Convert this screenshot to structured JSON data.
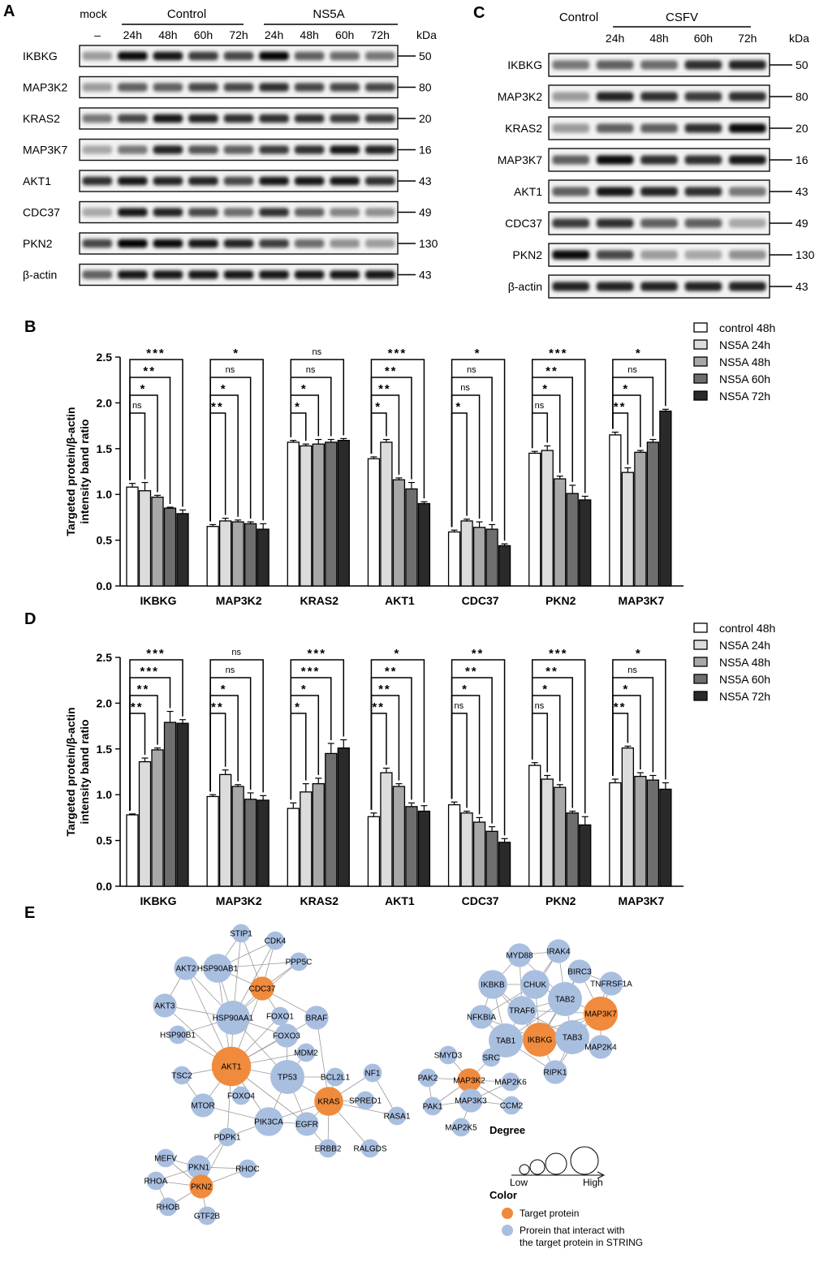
{
  "panel_labels": {
    "a": "A",
    "b": "B",
    "c": "C",
    "d": "D",
    "e": "E"
  },
  "blot_a": {
    "mock_label": "mock",
    "mock_dash": "–",
    "group_control": "Control",
    "group_ns5a": "NS5A",
    "times": [
      "24h",
      "48h",
      "60h",
      "72h"
    ],
    "kda_label": "kDa",
    "proteins": [
      "IKBKG",
      "MAP3K2",
      "KRAS2",
      "MAP3K7",
      "AKT1",
      "CDC37",
      "PKN2",
      "β-actin"
    ],
    "kda": [
      "50",
      "80",
      "20",
      "16",
      "43",
      "49",
      "130",
      "43"
    ],
    "lanes": 9
  },
  "blot_c": {
    "group_control": "Control",
    "group_csfv": "CSFV",
    "times": [
      "24h",
      "48h",
      "60h",
      "72h"
    ],
    "kda_label": "kDa",
    "proteins": [
      "IKBKG",
      "MAP3K2",
      "KRAS2",
      "MAP3K7",
      "AKT1",
      "CDC37",
      "PKN2",
      "β-actin"
    ],
    "kda": [
      "50",
      "80",
      "20",
      "16",
      "43",
      "49",
      "130",
      "43"
    ],
    "lanes": 5
  },
  "chart_data": [
    {
      "type": "bar",
      "panel": "B",
      "ylabel": "Targeted protein/β-actin intensity band ratio",
      "ylabel_lines": [
        "Targeted protein/β-actin",
        "intensity band ratio"
      ],
      "ylim": [
        0,
        2.5
      ],
      "yticks": [
        "0.0",
        "0.5",
        "1.0",
        "1.5",
        "2.0",
        "2.5"
      ],
      "categories": [
        "IKBKG",
        "MAP3K2",
        "KRAS2",
        "AKT1",
        "CDC37",
        "PKN2",
        "MAP3K7"
      ],
      "series": [
        {
          "name": "control 48h",
          "color": "#ffffff",
          "values": [
            1.08,
            0.65,
            1.57,
            1.39,
            0.59,
            1.45,
            1.65
          ],
          "errors": [
            0.04,
            0.02,
            0.02,
            0.02,
            0.02,
            0.02,
            0.03
          ]
        },
        {
          "name": "NS5A 24h",
          "color": "#dcdcdc",
          "values": [
            1.04,
            0.71,
            1.53,
            1.57,
            0.71,
            1.48,
            1.24
          ],
          "errors": [
            0.09,
            0.03,
            0.02,
            0.03,
            0.02,
            0.05,
            0.05
          ]
        },
        {
          "name": "NS5A 48h",
          "color": "#a8a8a8",
          "values": [
            0.97,
            0.7,
            1.55,
            1.16,
            0.64,
            1.17,
            1.46
          ],
          "errors": [
            0.02,
            0.02,
            0.05,
            0.02,
            0.06,
            0.03,
            0.02
          ]
        },
        {
          "name": "NS5A 60h",
          "color": "#6e6e6e",
          "values": [
            0.85,
            0.68,
            1.57,
            1.06,
            0.62,
            1.01,
            1.57
          ],
          "errors": [
            0.01,
            0.02,
            0.03,
            0.07,
            0.05,
            0.09,
            0.03
          ]
        },
        {
          "name": "NS5A 72h",
          "color": "#2a2a2a",
          "values": [
            0.79,
            0.62,
            1.59,
            0.9,
            0.44,
            0.94,
            1.91
          ],
          "errors": [
            0.04,
            0.06,
            0.02,
            0.02,
            0.02,
            0.04,
            0.02
          ]
        }
      ],
      "significance": [
        [
          "ns",
          "*",
          "**",
          "***"
        ],
        [
          "**",
          "*",
          "ns",
          "*"
        ],
        [
          "*",
          "*",
          "ns",
          "ns"
        ],
        [
          "*",
          "**",
          "**",
          "***"
        ],
        [
          "*",
          "ns",
          "ns",
          "*"
        ],
        [
          "ns",
          "*",
          "**",
          "***"
        ],
        [
          "**",
          "*",
          "ns",
          "*"
        ]
      ]
    },
    {
      "type": "bar",
      "panel": "D",
      "ylabel": "Targeted protein/β-actin intensity band ratio",
      "ylabel_lines": [
        "Targeted protein/β-actin",
        "intensity band ratio"
      ],
      "ylim": [
        0,
        2.5
      ],
      "yticks": [
        "0.0",
        "0.5",
        "1.0",
        "1.5",
        "2.0",
        "2.5"
      ],
      "categories": [
        "IKBKG",
        "MAP3K2",
        "KRAS2",
        "AKT1",
        "CDC37",
        "PKN2",
        "MAP3K7"
      ],
      "series": [
        {
          "name": "control 48h",
          "color": "#ffffff",
          "values": [
            0.78,
            0.98,
            0.85,
            0.76,
            0.89,
            1.32,
            1.13
          ],
          "errors": [
            0.01,
            0.02,
            0.06,
            0.04,
            0.03,
            0.03,
            0.04
          ]
        },
        {
          "name": "NS5A 24h",
          "color": "#dcdcdc",
          "values": [
            1.36,
            1.22,
            1.03,
            1.24,
            0.8,
            1.17,
            1.51
          ],
          "errors": [
            0.04,
            0.05,
            0.09,
            0.05,
            0.02,
            0.04,
            0.02
          ]
        },
        {
          "name": "NS5A 48h",
          "color": "#a8a8a8",
          "values": [
            1.49,
            1.09,
            1.12,
            1.09,
            0.7,
            1.08,
            1.2
          ],
          "errors": [
            0.02,
            0.02,
            0.06,
            0.03,
            0.05,
            0.03,
            0.04
          ]
        },
        {
          "name": "NS5A 60h",
          "color": "#6e6e6e",
          "values": [
            1.79,
            0.95,
            1.45,
            0.87,
            0.6,
            0.8,
            1.16
          ],
          "errors": [
            0.12,
            0.07,
            0.11,
            0.04,
            0.05,
            0.02,
            0.05
          ]
        },
        {
          "name": "NS5A 72h",
          "color": "#2a2a2a",
          "values": [
            1.78,
            0.94,
            1.51,
            0.82,
            0.48,
            0.67,
            1.06
          ],
          "errors": [
            0.04,
            0.05,
            0.09,
            0.06,
            0.04,
            0.09,
            0.07
          ]
        }
      ],
      "significance": [
        [
          "**",
          "**",
          "***",
          "***"
        ],
        [
          "**",
          "*",
          "ns",
          "ns"
        ],
        [
          "*",
          "*",
          "***",
          "***"
        ],
        [
          "**",
          "**",
          "**",
          "*"
        ],
        [
          "ns",
          "*",
          "**",
          "**"
        ],
        [
          "ns",
          "*",
          "**",
          "***"
        ],
        [
          "**",
          "*",
          "ns",
          "*"
        ]
      ]
    }
  ],
  "network": {
    "target_color": "#f08a3c",
    "partner_color": "#a9bfe0",
    "nodes": [
      {
        "id": "STIP1",
        "target": false,
        "degree": 2
      },
      {
        "id": "CDK4",
        "target": false,
        "degree": 2
      },
      {
        "id": "AKT2",
        "target": false,
        "degree": 3
      },
      {
        "id": "HSP90AB1",
        "target": false,
        "degree": 4
      },
      {
        "id": "PPP5C",
        "target": false,
        "degree": 2
      },
      {
        "id": "CDC37",
        "target": true,
        "degree": 3
      },
      {
        "id": "AKT3",
        "target": false,
        "degree": 3
      },
      {
        "id": "HSP90AA1",
        "target": false,
        "degree": 5
      },
      {
        "id": "FOXO1",
        "target": false,
        "degree": 2
      },
      {
        "id": "BRAF",
        "target": false,
        "degree": 3
      },
      {
        "id": "HSP90B1",
        "target": false,
        "degree": 2
      },
      {
        "id": "FOXO3",
        "target": false,
        "degree": 3
      },
      {
        "id": "MDM2",
        "target": false,
        "degree": 2
      },
      {
        "id": "AKT1",
        "target": true,
        "degree": 6
      },
      {
        "id": "TSC2",
        "target": false,
        "degree": 2
      },
      {
        "id": "TP53",
        "target": false,
        "degree": 5
      },
      {
        "id": "BCL2L1",
        "target": false,
        "degree": 2
      },
      {
        "id": "NF1",
        "target": false,
        "degree": 2
      },
      {
        "id": "FOXO4",
        "target": false,
        "degree": 2
      },
      {
        "id": "KRAS",
        "target": true,
        "degree": 4
      },
      {
        "id": "SPRED1",
        "target": false,
        "degree": 2
      },
      {
        "id": "MTOR",
        "target": false,
        "degree": 3
      },
      {
        "id": "PIK3CA",
        "target": false,
        "degree": 4
      },
      {
        "id": "EGFR",
        "target": false,
        "degree": 3
      },
      {
        "id": "RASA1",
        "target": false,
        "degree": 2
      },
      {
        "id": "PDPK1",
        "target": false,
        "degree": 2
      },
      {
        "id": "ERBB2",
        "target": false,
        "degree": 2
      },
      {
        "id": "RALGDS",
        "target": false,
        "degree": 2
      },
      {
        "id": "MEFV",
        "target": false,
        "degree": 2
      },
      {
        "id": "PKN1",
        "target": false,
        "degree": 3
      },
      {
        "id": "RHOC",
        "target": false,
        "degree": 2
      },
      {
        "id": "RHOA",
        "target": false,
        "degree": 2
      },
      {
        "id": "PKN2",
        "target": true,
        "degree": 3
      },
      {
        "id": "RHOB",
        "target": false,
        "degree": 2
      },
      {
        "id": "GTF2B",
        "target": false,
        "degree": 2
      },
      {
        "id": "MYD88",
        "target": false,
        "degree": 3
      },
      {
        "id": "IRAK4",
        "target": false,
        "degree": 3
      },
      {
        "id": "BIRC3",
        "target": false,
        "degree": 3
      },
      {
        "id": "IKBKB",
        "target": false,
        "degree": 4
      },
      {
        "id": "CHUK",
        "target": false,
        "degree": 4
      },
      {
        "id": "TAB2",
        "target": false,
        "degree": 5
      },
      {
        "id": "TNFRSF1A",
        "target": false,
        "degree": 3
      },
      {
        "id": "NFKBIA",
        "target": false,
        "degree": 3
      },
      {
        "id": "TRAF6",
        "target": false,
        "degree": 4
      },
      {
        "id": "MAP3K7",
        "target": true,
        "degree": 5
      },
      {
        "id": "TAB1",
        "target": false,
        "degree": 5
      },
      {
        "id": "IKBKG",
        "target": true,
        "degree": 5
      },
      {
        "id": "TAB3",
        "target": false,
        "degree": 5
      },
      {
        "id": "MAP2K4",
        "target": false,
        "degree": 3
      },
      {
        "id": "RIPK1",
        "target": false,
        "degree": 3
      },
      {
        "id": "SMYD3",
        "target": false,
        "degree": 2
      },
      {
        "id": "SRC",
        "target": false,
        "degree": 2
      },
      {
        "id": "PAK2",
        "target": false,
        "degree": 2
      },
      {
        "id": "MAP3K2",
        "target": true,
        "degree": 3
      },
      {
        "id": "MAP2K6",
        "target": false,
        "degree": 2
      },
      {
        "id": "PAK1",
        "target": false,
        "degree": 2
      },
      {
        "id": "MAP3K3",
        "target": false,
        "degree": 3
      },
      {
        "id": "CCM2",
        "target": false,
        "degree": 2
      },
      {
        "id": "MAP2K5",
        "target": false,
        "degree": 2
      }
    ],
    "edges": [
      [
        "STIP1",
        "HSP90AB1"
      ],
      [
        "STIP1",
        "HSP90AA1"
      ],
      [
        "STIP1",
        "CDC37"
      ],
      [
        "CDK4",
        "CDC37"
      ],
      [
        "CDK4",
        "HSP90AB1"
      ],
      [
        "CDK4",
        "HSP90AA1"
      ],
      [
        "AKT2",
        "HSP90AB1"
      ],
      [
        "AKT2",
        "HSP90AA1"
      ],
      [
        "AKT2",
        "AKT1"
      ],
      [
        "AKT2",
        "AKT3"
      ],
      [
        "HSP90AB1",
        "CDC37"
      ],
      [
        "HSP90AB1",
        "HSP90AA1"
      ],
      [
        "HSP90AB1",
        "AKT1"
      ],
      [
        "HSP90AB1",
        "PPP5C"
      ],
      [
        "PPP5C",
        "CDC37"
      ],
      [
        "PPP5C",
        "HSP90AA1"
      ],
      [
        "CDC37",
        "HSP90AA1"
      ],
      [
        "CDC37",
        "AKT1"
      ],
      [
        "CDC37",
        "BRAF"
      ],
      [
        "CDC37",
        "FOXO1"
      ],
      [
        "AKT3",
        "HSP90AA1"
      ],
      [
        "AKT3",
        "AKT1"
      ],
      [
        "HSP90AA1",
        "AKT1"
      ],
      [
        "HSP90AA1",
        "HSP90B1"
      ],
      [
        "HSP90AA1",
        "TP53"
      ],
      [
        "HSP90AA1",
        "FOXO3"
      ],
      [
        "HSP90B1",
        "AKT1"
      ],
      [
        "FOXO1",
        "AKT1"
      ],
      [
        "FOXO1",
        "FOXO3"
      ],
      [
        "FOXO3",
        "AKT1"
      ],
      [
        "FOXO3",
        "TP53"
      ],
      [
        "BRAF",
        "KRAS"
      ],
      [
        "BRAF",
        "AKT1"
      ],
      [
        "MDM2",
        "TP53"
      ],
      [
        "MDM2",
        "AKT1"
      ],
      [
        "AKT1",
        "TSC2"
      ],
      [
        "AKT1",
        "TP53"
      ],
      [
        "AKT1",
        "MTOR"
      ],
      [
        "AKT1",
        "FOXO4"
      ],
      [
        "AKT1",
        "PIK3CA"
      ],
      [
        "AKT1",
        "PDPK1"
      ],
      [
        "AKT1",
        "EGFR"
      ],
      [
        "TSC2",
        "MTOR"
      ],
      [
        "TP53",
        "KRAS"
      ],
      [
        "TP53",
        "EGFR"
      ],
      [
        "TP53",
        "PIK3CA"
      ],
      [
        "TP53",
        "BCL2L1"
      ],
      [
        "KRAS",
        "NF1"
      ],
      [
        "KRAS",
        "SPRED1"
      ],
      [
        "KRAS",
        "RASA1"
      ],
      [
        "KRAS",
        "EGFR"
      ],
      [
        "KRAS",
        "PIK3CA"
      ],
      [
        "KRAS",
        "ERBB2"
      ],
      [
        "KRAS",
        "RALGDS"
      ],
      [
        "KRAS",
        "BCL2L1"
      ],
      [
        "NF1",
        "RASA1"
      ],
      [
        "EGFR",
        "PIK3CA"
      ],
      [
        "EGFR",
        "ERBB2"
      ],
      [
        "PIK3CA",
        "MTOR"
      ],
      [
        "PIK3CA",
        "PDPK1"
      ],
      [
        "PDPK1",
        "PKN1"
      ],
      [
        "PDPK1",
        "PKN2"
      ],
      [
        "MEFV",
        "PKN1"
      ],
      [
        "PKN1",
        "RHOC"
      ],
      [
        "PKN1",
        "RHOA"
      ],
      [
        "PKN1",
        "PKN2"
      ],
      [
        "PKN2",
        "RHOA"
      ],
      [
        "PKN2",
        "RHOB"
      ],
      [
        "PKN2",
        "GTF2B"
      ],
      [
        "PKN2",
        "RHOC"
      ],
      [
        "PKN2",
        "MEFV"
      ],
      [
        "RHOA",
        "RHOB"
      ],
      [
        "MYD88",
        "IRAK4"
      ],
      [
        "MYD88",
        "IKBKB"
      ],
      [
        "MYD88",
        "TRAF6"
      ],
      [
        "MYD88",
        "TAB2"
      ],
      [
        "IRAK4",
        "TAB2"
      ],
      [
        "IRAK4",
        "TRAF6"
      ],
      [
        "IRAK4",
        "CHUK"
      ],
      [
        "BIRC3",
        "TAB2"
      ],
      [
        "BIRC3",
        "MAP3K7"
      ],
      [
        "BIRC3",
        "IKBKG"
      ],
      [
        "BIRC3",
        "TNFRSF1A"
      ],
      [
        "IKBKB",
        "CHUK"
      ],
      [
        "IKBKB",
        "IKBKG"
      ],
      [
        "IKBKB",
        "NFKBIA"
      ],
      [
        "IKBKB",
        "TRAF6"
      ],
      [
        "IKBKB",
        "TAB1"
      ],
      [
        "CHUK",
        "IKBKG"
      ],
      [
        "CHUK",
        "TAB2"
      ],
      [
        "CHUK",
        "TRAF6"
      ],
      [
        "CHUK",
        "NFKBIA"
      ],
      [
        "TAB2",
        "MAP3K7"
      ],
      [
        "TAB2",
        "TRAF6"
      ],
      [
        "TAB2",
        "TAB1"
      ],
      [
        "TAB2",
        "TAB3"
      ],
      [
        "TAB2",
        "IKBKG"
      ],
      [
        "TNFRSF1A",
        "MAP3K7"
      ],
      [
        "TNFRSF1A",
        "RIPK1"
      ],
      [
        "TRAF6",
        "MAP3K7"
      ],
      [
        "TRAF6",
        "TAB1"
      ],
      [
        "TRAF6",
        "IKBKG"
      ],
      [
        "TRAF6",
        "TAB3"
      ],
      [
        "NFKBIA",
        "TAB1"
      ],
      [
        "NFKBIA",
        "IKBKG"
      ],
      [
        "MAP3K7",
        "TAB3"
      ],
      [
        "MAP3K7",
        "IKBKG"
      ],
      [
        "MAP3K7",
        "MAP2K4"
      ],
      [
        "MAP3K7",
        "TAB1"
      ],
      [
        "TAB1",
        "IKBKG"
      ],
      [
        "TAB1",
        "RIPK1"
      ],
      [
        "IKBKG",
        "TAB3"
      ],
      [
        "IKBKG",
        "RIPK1"
      ],
      [
        "TAB3",
        "RIPK1"
      ],
      [
        "TAB3",
        "MAP2K4"
      ],
      [
        "SMYD3",
        "MAP3K2"
      ],
      [
        "SRC",
        "MAP3K2"
      ],
      [
        "PAK2",
        "MAP3K2"
      ],
      [
        "PAK2",
        "PAK1"
      ],
      [
        "MAP3K2",
        "MAP2K6"
      ],
      [
        "MAP3K2",
        "MAP3K3"
      ],
      [
        "MAP3K2",
        "PAK1"
      ],
      [
        "MAP3K2",
        "CCM2"
      ],
      [
        "PAK1",
        "MAP3K3"
      ],
      [
        "MAP3K3",
        "MAP2K5"
      ],
      [
        "MAP3K3",
        "CCM2"
      ],
      [
        "MAP3K3",
        "MAP2K6"
      ]
    ]
  },
  "legend_e": {
    "degree_title": "Degree",
    "low": "Low",
    "high": "High",
    "color_title": "Color",
    "target_label": "Target protein",
    "partner_label_1": "Prorein that interact with",
    "partner_label_2": "the target protein in STRING"
  }
}
